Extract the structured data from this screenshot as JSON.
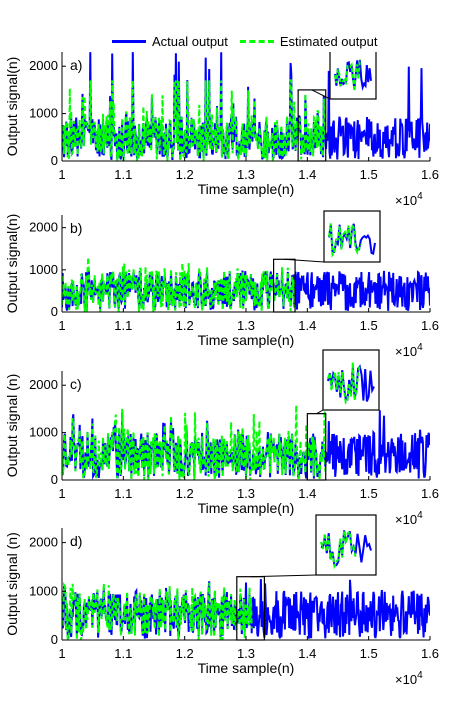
{
  "chart_data": [
    {
      "type": "line",
      "panel_label": "a)",
      "xlabel": "Time sample(n)",
      "ylabel": "Output signal(n)",
      "x_multiplier": "×10^4",
      "xlim": [
        10000,
        16000
      ],
      "ylim": [
        0,
        2300
      ],
      "xticks": [
        "1",
        "1.1",
        "1.2",
        "1.3",
        "1.4",
        "1.5",
        "1.6"
      ],
      "yticks": [
        "0",
        "1000",
        "2000"
      ],
      "series": [
        {
          "name": "Actual output",
          "color": "#0000ff",
          "x_range": [
            10000,
            16000
          ],
          "values_approx": {
            "mean": 480,
            "min": 0,
            "max": 2300
          }
        },
        {
          "name": "Estimated output",
          "color": "#00ff00",
          "x_range": [
            10000,
            14300
          ],
          "values_approx": {
            "mean": 470,
            "min": 0,
            "max": 1700
          }
        }
      ],
      "zoom_box": {
        "x_range": [
          13850,
          14300
        ],
        "y_range": [
          0,
          1500
        ]
      }
    },
    {
      "type": "line",
      "panel_label": "b)",
      "xlabel": "Time sample(n)",
      "ylabel": "Output signal(n)",
      "x_multiplier": "×10^4",
      "xlim": [
        10000,
        16000
      ],
      "ylim": [
        0,
        2300
      ],
      "xticks": [
        "1",
        "1.1",
        "1.2",
        "1.3",
        "1.4",
        "1.5",
        "1.6"
      ],
      "yticks": [
        "0",
        "1000",
        "2000"
      ],
      "series": [
        {
          "name": "Actual output",
          "color": "#0000ff",
          "x_range": [
            10000,
            16000
          ],
          "values_approx": {
            "mean": 500,
            "min": 0,
            "max": 1000
          }
        },
        {
          "name": "Estimated output",
          "color": "#00ff00",
          "x_range": [
            10000,
            13800
          ],
          "values_approx": {
            "mean": 520,
            "min": 0,
            "max": 1450
          }
        }
      ],
      "zoom_box": {
        "x_range": [
          13450,
          13800
        ],
        "y_range": [
          0,
          1250
        ]
      }
    },
    {
      "type": "line",
      "panel_label": "c)",
      "xlabel": "Time sample(n)",
      "ylabel": "Output signal (n)",
      "x_multiplier": "×10^4",
      "xlim": [
        10000,
        16000
      ],
      "ylim": [
        0,
        2300
      ],
      "xticks": [
        "1",
        "1.1",
        "1.2",
        "1.3",
        "1.4",
        "1.5",
        "1.6"
      ],
      "yticks": [
        "0",
        "1000",
        "2000"
      ],
      "series": [
        {
          "name": "Actual output",
          "color": "#0000ff",
          "x_range": [
            10000,
            16000
          ],
          "values_approx": {
            "mean": 520,
            "min": 0,
            "max": 1500
          }
        },
        {
          "name": "Estimated output",
          "color": "#00ff00",
          "x_range": [
            10000,
            14300
          ],
          "values_approx": {
            "mean": 560,
            "min": 0,
            "max": 1650
          }
        }
      ],
      "zoom_box": {
        "x_range": [
          14000,
          14300
        ],
        "y_range": [
          0,
          1400
        ]
      }
    },
    {
      "type": "line",
      "panel_label": "d)",
      "xlabel": "Time sample(n)",
      "ylabel": "Output signal (n)",
      "x_multiplier": "×10^4",
      "xlim": [
        10000,
        16000
      ],
      "ylim": [
        0,
        2300
      ],
      "xticks": [
        "1",
        "1.1",
        "1.2",
        "1.3",
        "1.4",
        "1.5",
        "1.6"
      ],
      "yticks": [
        "0",
        "1000",
        "2000"
      ],
      "series": [
        {
          "name": "Actual output",
          "color": "#0000ff",
          "x_range": [
            10000,
            16000
          ],
          "values_approx": {
            "mean": 520,
            "min": 0,
            "max": 1250
          }
        },
        {
          "name": "Estimated output",
          "color": "#00ff00",
          "x_range": [
            10000,
            13100
          ],
          "values_approx": {
            "mean": 520,
            "min": 0,
            "max": 1200
          }
        }
      ],
      "zoom_box": {
        "x_range": [
          12850,
          13300
        ],
        "y_range": [
          0,
          1300
        ]
      }
    }
  ],
  "legend": {
    "items": [
      {
        "label": "Actual output",
        "color": "#0000ff",
        "style": "solid"
      },
      {
        "label": "Estimated output",
        "color": "#00ff00",
        "style": "dashed"
      }
    ]
  }
}
